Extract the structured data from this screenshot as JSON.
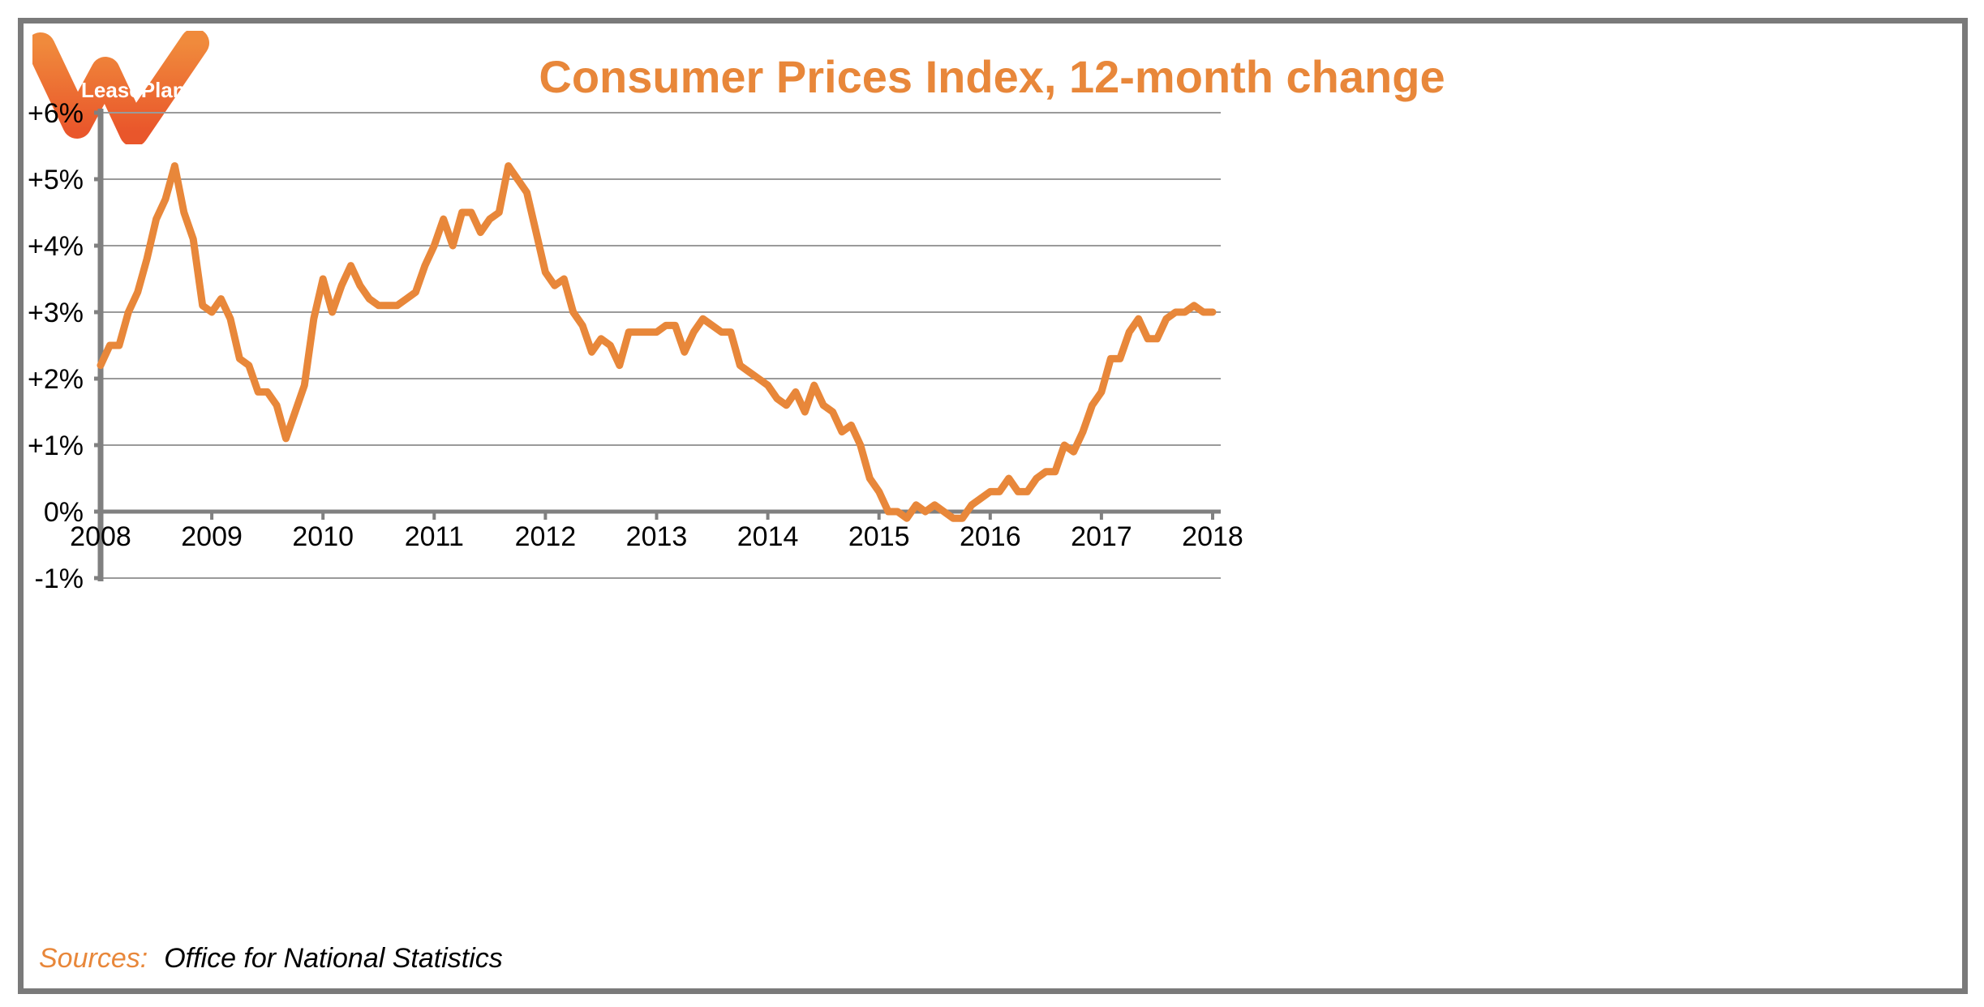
{
  "logo": {
    "text": "LeasePlan"
  },
  "colors": {
    "line": "#e8873a",
    "title": "#e8873a",
    "grid": "#9a9a9a",
    "axis": "#808080",
    "border": "#7a7a7a"
  },
  "source": {
    "label": "Sources:",
    "text": "Office for National Statistics"
  },
  "chart_data": {
    "type": "line",
    "title": "Consumer Prices Index, 12-month change",
    "xlabel": "",
    "ylabel": "",
    "xlim": [
      2008,
      2018
    ],
    "ylim": [
      -1,
      6
    ],
    "grid": true,
    "x_tick_labels": [
      "2008",
      "2009",
      "2010",
      "2011",
      "2012",
      "2013",
      "2014",
      "2015",
      "2016",
      "2017",
      "2018"
    ],
    "y_tick_labels": [
      "+6%",
      "+5%",
      "+4%",
      "+3%",
      "+2%",
      "+1%",
      "0%",
      "-1%"
    ],
    "series": [
      {
        "x_start": "2008-01",
        "frequency": "monthly",
        "values": [
          2.2,
          2.5,
          2.5,
          3.0,
          3.3,
          3.8,
          4.4,
          4.7,
          5.2,
          4.5,
          4.1,
          3.1,
          3.0,
          3.2,
          2.9,
          2.3,
          2.2,
          1.8,
          1.8,
          1.6,
          1.1,
          1.5,
          1.9,
          2.9,
          3.5,
          3.0,
          3.4,
          3.7,
          3.4,
          3.2,
          3.1,
          3.1,
          3.1,
          3.2,
          3.3,
          3.7,
          4.0,
          4.4,
          4.0,
          4.5,
          4.5,
          4.2,
          4.4,
          4.5,
          5.2,
          5.0,
          4.8,
          4.2,
          3.6,
          3.4,
          3.5,
          3.0,
          2.8,
          2.4,
          2.6,
          2.5,
          2.2,
          2.7,
          2.7,
          2.7,
          2.7,
          2.8,
          2.8,
          2.4,
          2.7,
          2.9,
          2.8,
          2.7,
          2.7,
          2.2,
          2.1,
          2.0,
          1.9,
          1.7,
          1.6,
          1.8,
          1.5,
          1.9,
          1.6,
          1.5,
          1.2,
          1.3,
          1.0,
          0.5,
          0.3,
          0.0,
          0.0,
          -0.1,
          0.1,
          0.0,
          0.1,
          0.0,
          -0.1,
          -0.1,
          0.1,
          0.2,
          0.3,
          0.3,
          0.5,
          0.3,
          0.3,
          0.5,
          0.6,
          0.6,
          1.0,
          0.9,
          1.2,
          1.6,
          1.8,
          2.3,
          2.3,
          2.7,
          2.9,
          2.6,
          2.6,
          2.9,
          3.0,
          3.0,
          3.1,
          3.0,
          3.0
        ]
      }
    ]
  }
}
